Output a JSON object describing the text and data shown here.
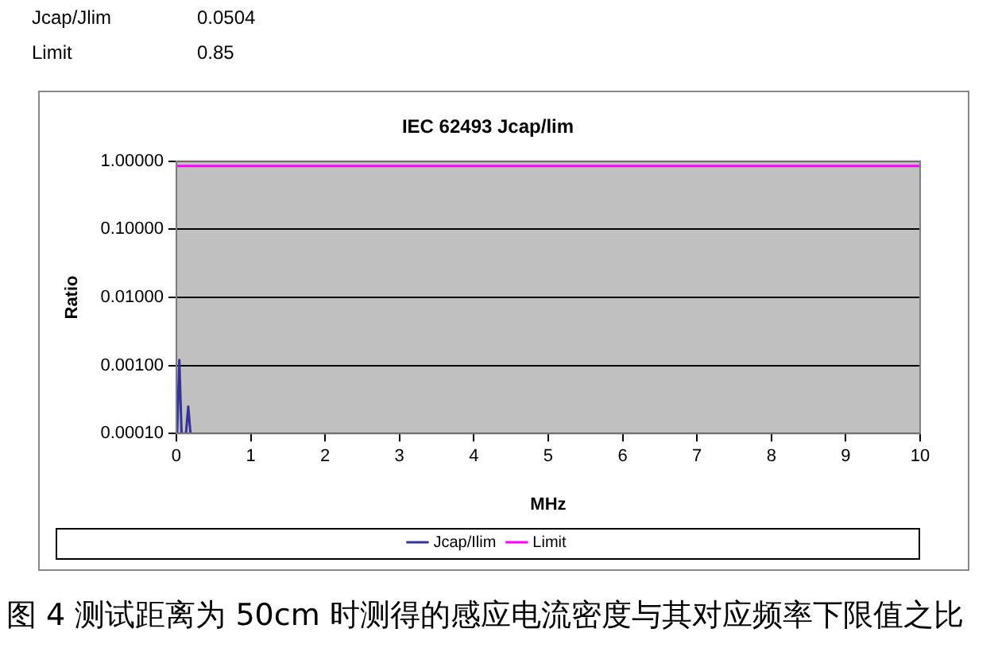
{
  "chart_data": {
    "type": "line",
    "title": "IEC 62493 Jcap/lim",
    "xlabel": "MHz",
    "ylabel": "Ratio",
    "annotations": [
      "Jcap/Jlim",
      "0.0504",
      "Limit",
      "0.85",
      "图 4  测试距离为 50cm 时测得的感应电流密度与其对应频率下限值之比"
    ],
    "series": [
      {
        "name": "Jcap/Ilim",
        "color": "#333399",
        "x": [
          0.01,
          0.04,
          0.07,
          0.13,
          0.16,
          0.19
        ],
        "values": [
          0.0001,
          0.0012,
          0.0001,
          0.0001,
          0.00025,
          0.0001
        ]
      },
      {
        "name": "Limit",
        "color": "#ff00ff",
        "x": [
          0,
          10
        ],
        "values": [
          0.85,
          0.85
        ]
      }
    ],
    "xlim": [
      0,
      10
    ],
    "xticks": [
      0,
      1,
      2,
      3,
      4,
      5,
      6,
      7,
      8,
      9,
      10
    ],
    "ylim": [
      0.0001,
      1
    ],
    "yticks": [
      {
        "value": 0.0001,
        "label": "0.00010"
      },
      {
        "value": 0.001,
        "label": "0.00100"
      },
      {
        "value": 0.01,
        "label": "0.01000"
      },
      {
        "value": 0.1,
        "label": "0.10000"
      },
      {
        "value": 1,
        "label": "1.00000"
      }
    ],
    "log": true,
    "grid": "y",
    "legend": "bottom",
    "marker": "none",
    "line_style": "solid"
  }
}
